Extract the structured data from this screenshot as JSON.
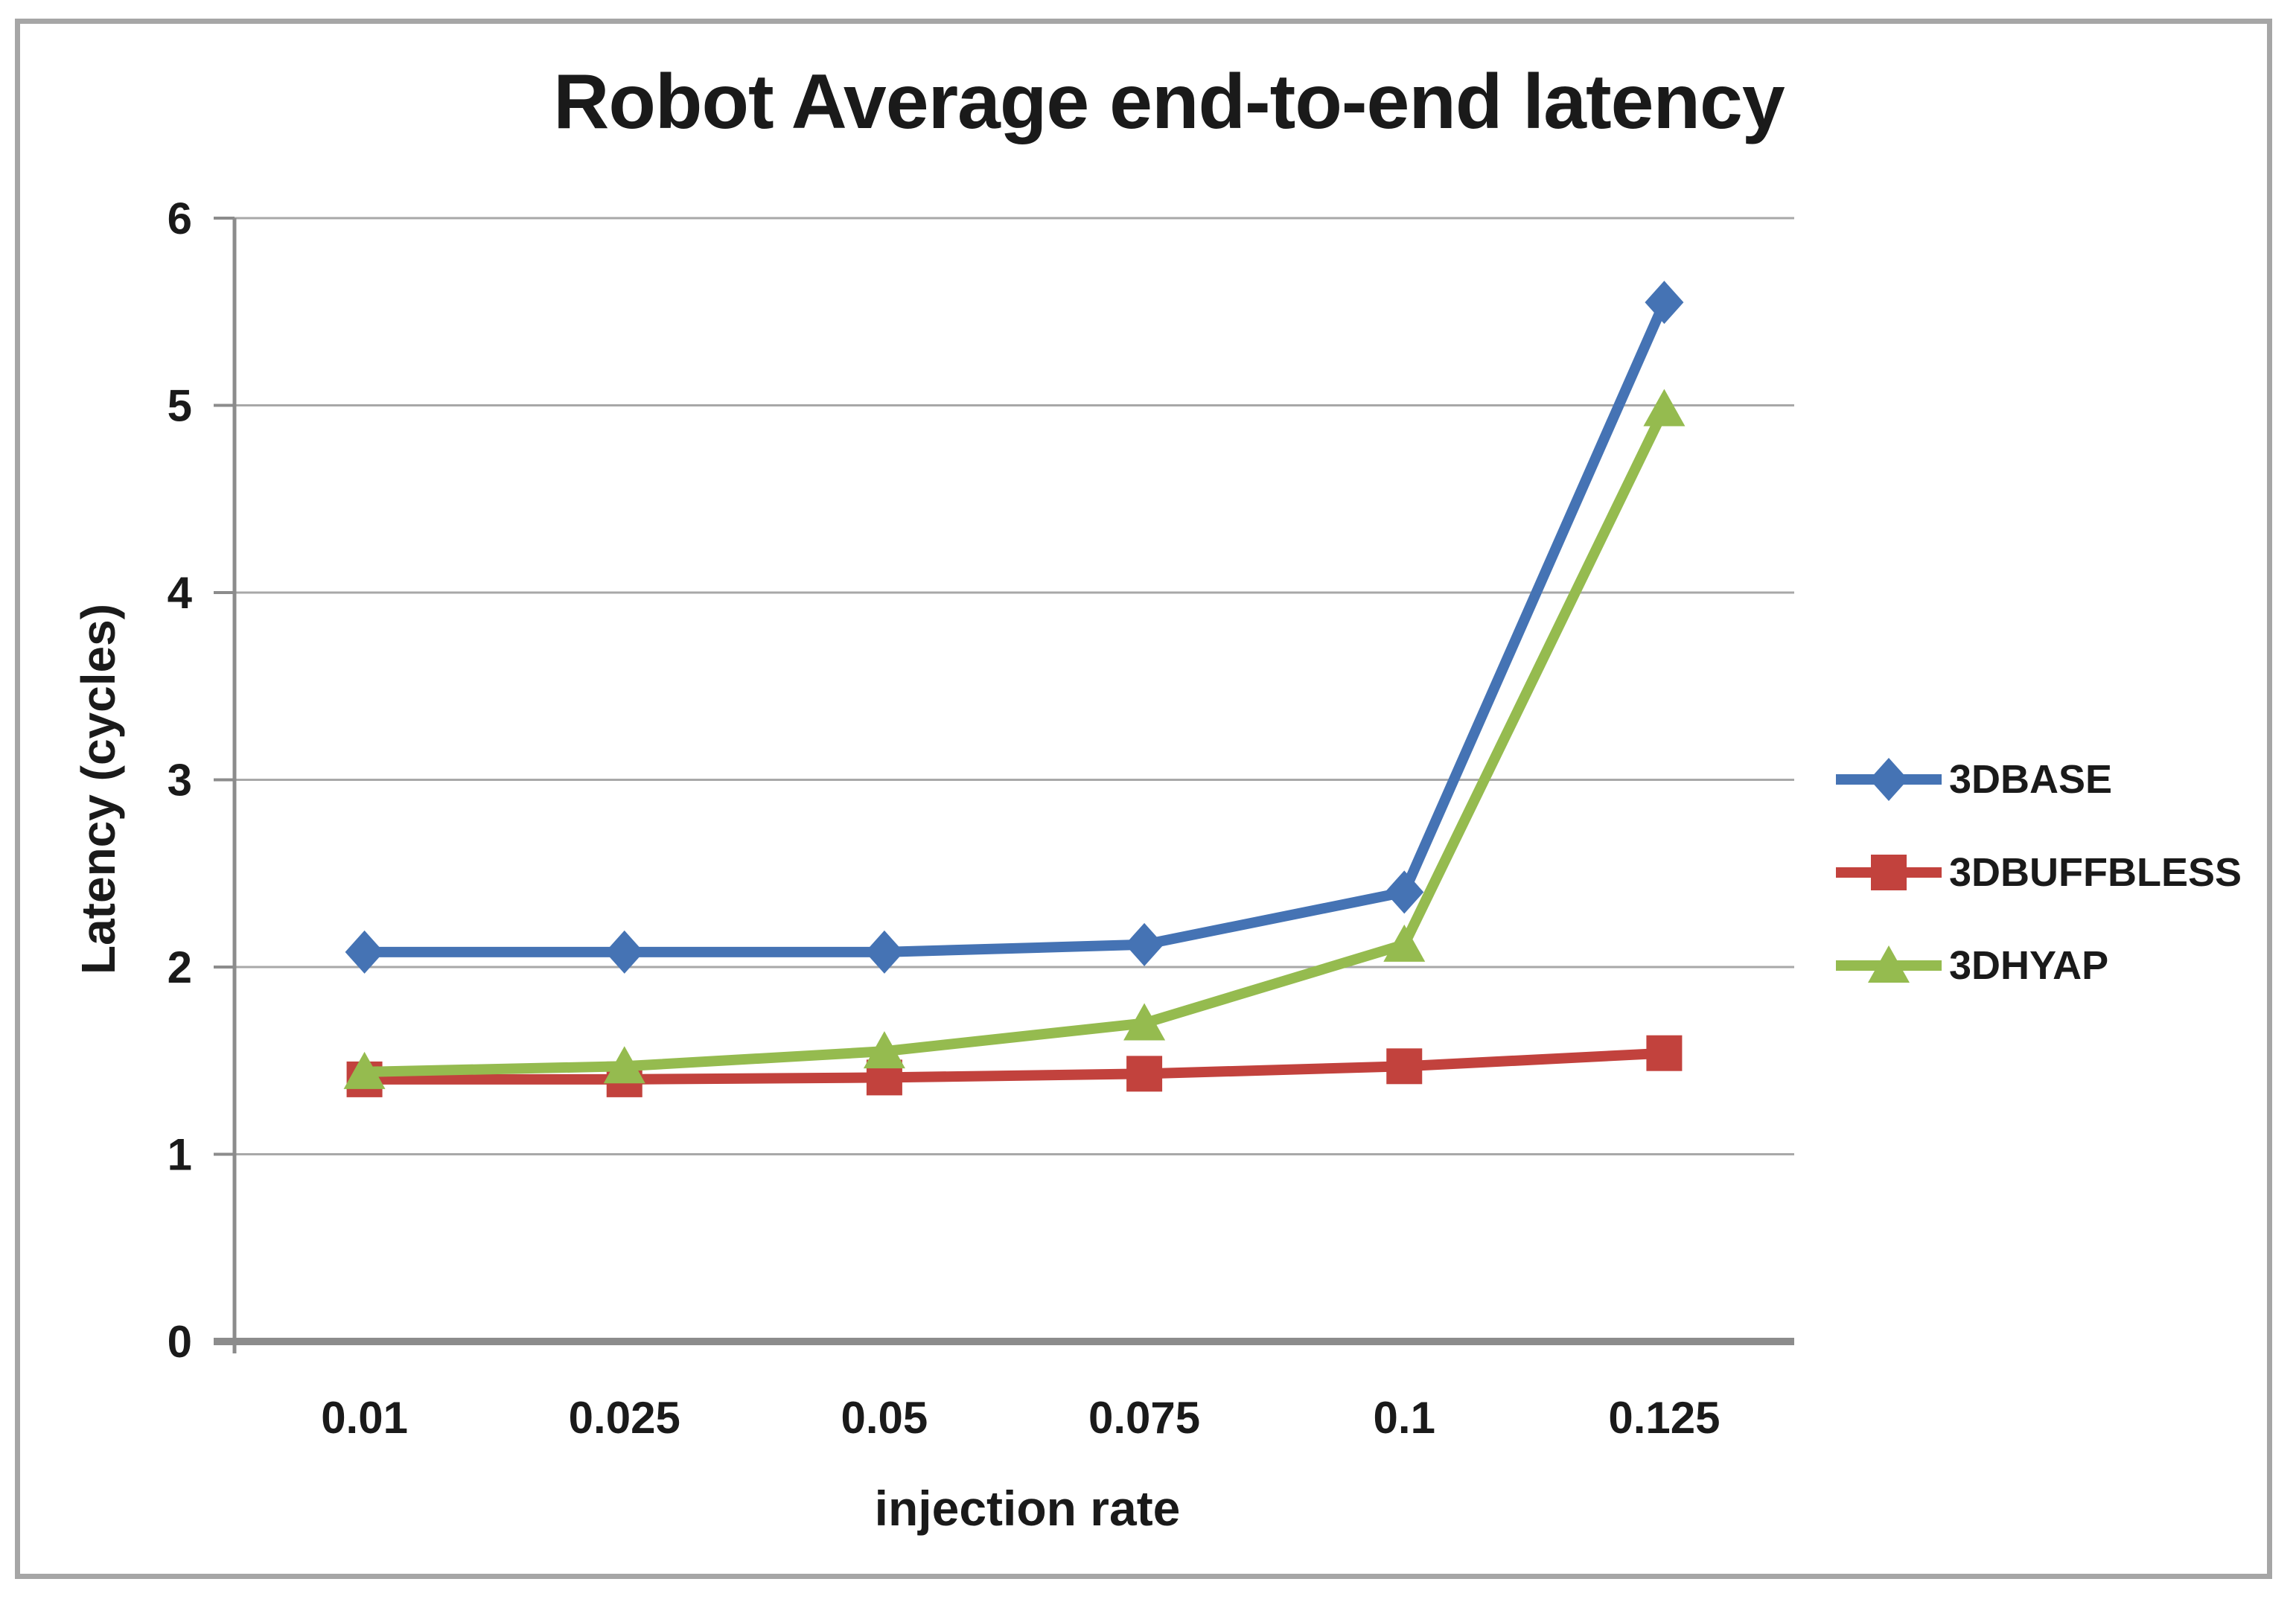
{
  "page": {
    "background_color": "#ffffff",
    "border_color": "#a6a6a6"
  },
  "chart_data": {
    "type": "line",
    "title": "Robot Average end-to-end latency",
    "xlabel": "injection rate",
    "ylabel": "Latency (cycles)",
    "categories": [
      "0.01",
      "0.025",
      "0.05",
      "0.075",
      "0.1",
      "0.125"
    ],
    "x": [
      0.01,
      0.025,
      0.05,
      0.075,
      0.1,
      0.125
    ],
    "y_tick_labels": [
      "0",
      "1",
      "2",
      "3",
      "4",
      "5",
      "6"
    ],
    "ylim": [
      0,
      6
    ],
    "grid": "horizontal",
    "legend_position": "right",
    "axis_color": "#8c8c8c",
    "gridline_color": "#a8a8a8",
    "text_color": "#1a1a1a",
    "series": [
      {
        "name": "3DBASE",
        "color": "#4573b4",
        "marker": "diamond",
        "values": [
          2.08,
          2.08,
          2.08,
          2.12,
          2.4,
          5.55
        ]
      },
      {
        "name": "3DBUFFBLESS",
        "color": "#c2423d",
        "marker": "square",
        "values": [
          1.4,
          1.4,
          1.41,
          1.43,
          1.47,
          1.54
        ]
      },
      {
        "name": "3DHYAP",
        "color": "#95bb4f",
        "marker": "triangle",
        "values": [
          1.44,
          1.47,
          1.55,
          1.7,
          2.12,
          4.98
        ]
      }
    ]
  }
}
